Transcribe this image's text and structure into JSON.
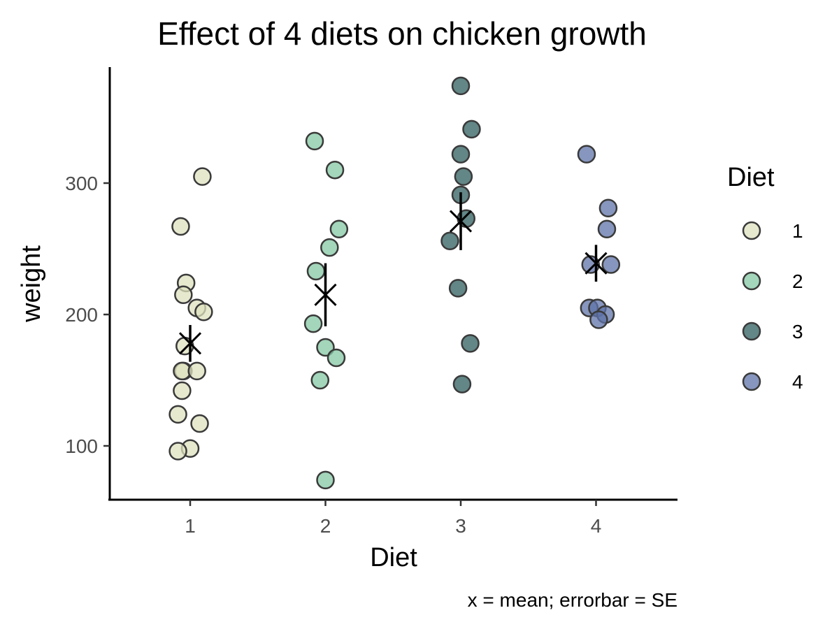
{
  "chart_data": {
    "type": "scatter",
    "title": "Effect of 4 diets on chicken growth",
    "xlabel": "Diet",
    "ylabel": "weight",
    "caption": "x = mean; errorbar = SE",
    "categories": [
      "1",
      "2",
      "3",
      "4"
    ],
    "y_ticks": [
      100,
      200,
      300
    ],
    "ylim": [
      60,
      380
    ],
    "grid": false,
    "legend": {
      "title": "Diet",
      "position": "right",
      "entries": [
        "1",
        "2",
        "3",
        "4"
      ]
    },
    "colors": [
      "#dfe2bf",
      "#84c8a3",
      "#2f5e5e",
      "#5f73a8"
    ],
    "series": [
      {
        "name": "1",
        "points": [
          {
            "x": 1.09,
            "y": 305
          },
          {
            "x": 0.93,
            "y": 267
          },
          {
            "x": 0.97,
            "y": 224
          },
          {
            "x": 0.95,
            "y": 215
          },
          {
            "x": 1.05,
            "y": 205
          },
          {
            "x": 1.1,
            "y": 202
          },
          {
            "x": 0.96,
            "y": 176
          },
          {
            "x": 0.95,
            "y": 157
          },
          {
            "x": 0.94,
            "y": 157
          },
          {
            "x": 1.05,
            "y": 157
          },
          {
            "x": 0.94,
            "y": 142
          },
          {
            "x": 0.91,
            "y": 124
          },
          {
            "x": 1.07,
            "y": 117
          },
          {
            "x": 1.0,
            "y": 98
          },
          {
            "x": 0.91,
            "y": 96
          }
        ],
        "mean": 178,
        "se_low": 164,
        "se_high": 192
      },
      {
        "name": "2",
        "points": [
          {
            "x": 1.92,
            "y": 332
          },
          {
            "x": 2.07,
            "y": 310
          },
          {
            "x": 2.1,
            "y": 265
          },
          {
            "x": 2.03,
            "y": 251
          },
          {
            "x": 1.93,
            "y": 233
          },
          {
            "x": 1.91,
            "y": 193
          },
          {
            "x": 2.0,
            "y": 175
          },
          {
            "x": 2.08,
            "y": 167
          },
          {
            "x": 1.96,
            "y": 150
          },
          {
            "x": 2.0,
            "y": 74
          }
        ],
        "mean": 215,
        "se_low": 191,
        "se_high": 239
      },
      {
        "name": "3",
        "points": [
          {
            "x": 3.0,
            "y": 374
          },
          {
            "x": 3.08,
            "y": 341
          },
          {
            "x": 3.0,
            "y": 322
          },
          {
            "x": 3.02,
            "y": 305
          },
          {
            "x": 3.0,
            "y": 291
          },
          {
            "x": 3.04,
            "y": 273
          },
          {
            "x": 2.92,
            "y": 256
          },
          {
            "x": 2.98,
            "y": 220
          },
          {
            "x": 3.07,
            "y": 178
          },
          {
            "x": 3.01,
            "y": 147
          }
        ],
        "mean": 271,
        "se_low": 249,
        "se_high": 293
      },
      {
        "name": "4",
        "points": [
          {
            "x": 3.93,
            "y": 322
          },
          {
            "x": 4.09,
            "y": 281
          },
          {
            "x": 4.08,
            "y": 265
          },
          {
            "x": 3.96,
            "y": 238
          },
          {
            "x": 4.11,
            "y": 238
          },
          {
            "x": 3.95,
            "y": 205
          },
          {
            "x": 4.01,
            "y": 205
          },
          {
            "x": 4.07,
            "y": 200
          },
          {
            "x": 4.02,
            "y": 196
          }
        ],
        "mean": 239,
        "se_low": 225,
        "se_high": 253
      }
    ]
  }
}
